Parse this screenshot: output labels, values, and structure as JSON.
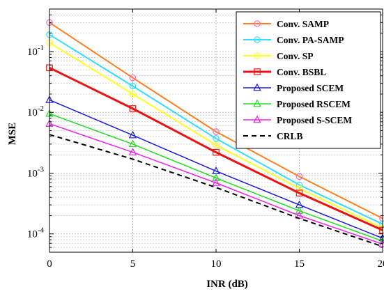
{
  "chart_data": {
    "type": "line",
    "xlabel": "INR (dB)",
    "ylabel": "MSE",
    "x": [
      0,
      5,
      10,
      15,
      20
    ],
    "xlim": [
      0,
      20
    ],
    "ylim": [
      5e-05,
      0.5
    ],
    "yscale": "log",
    "xticks": [
      "0",
      "5",
      "10",
      "15",
      "20"
    ],
    "yticks": [
      {
        "value": 0.0001,
        "base": "10",
        "exp": "-4"
      },
      {
        "value": 0.001,
        "base": "10",
        "exp": "-3"
      },
      {
        "value": 0.01,
        "base": "10",
        "exp": "-2"
      },
      {
        "value": 0.1,
        "base": "10",
        "exp": "-1"
      }
    ],
    "grid": true,
    "legend_position": "top-right",
    "series": [
      {
        "name": "Conv. SAMP",
        "color": "#ff7f1e",
        "marker": "circle",
        "marker_color": "#ff66cc",
        "dash": "solid",
        "width": 2,
        "values": [
          0.3,
          0.037,
          0.0048,
          0.00088,
          0.00018
        ]
      },
      {
        "name": "Conv. PA-SAMP",
        "color": "#33ddff",
        "marker": "circle",
        "marker_color": "#33ddff",
        "dash": "solid",
        "width": 2,
        "values": [
          0.19,
          0.027,
          0.0037,
          0.00064,
          0.000145
        ]
      },
      {
        "name": "Conv.  SP",
        "color": "#ffff22",
        "marker": "circle",
        "marker_color": "#ffff22",
        "dash": "solid",
        "width": 2,
        "values": [
          0.14,
          0.02,
          0.0029,
          0.00056,
          0.000125
        ]
      },
      {
        "name": "Conv. BSBL",
        "color": "#ee1111",
        "marker": "square",
        "marker_color": "#ee1111",
        "dash": "solid",
        "width": 3,
        "values": [
          0.054,
          0.0115,
          0.0022,
          0.00047,
          0.000115
        ]
      },
      {
        "name": "Proposed SCEM",
        "color": "#1a1adc",
        "marker": "triangle",
        "marker_color": "#1a1adc",
        "dash": "solid",
        "width": 1.5,
        "values": [
          0.016,
          0.0042,
          0.00108,
          0.0003,
          8.5e-05
        ]
      },
      {
        "name": "Proposed RSCEM",
        "color": "#22dd22",
        "marker": "triangle",
        "marker_color": "#22dd22",
        "dash": "solid",
        "width": 1.5,
        "values": [
          0.0095,
          0.003,
          0.00083,
          0.00024,
          7.6e-05
        ]
      },
      {
        "name": "Proposed S-SCEM",
        "color": "#ee22ee",
        "marker": "triangle",
        "marker_color": "#ee22ee",
        "dash": "solid",
        "width": 1.5,
        "values": [
          0.0065,
          0.0022,
          0.00069,
          0.0002,
          6.8e-05
        ]
      },
      {
        "name": "CRLB",
        "color": "#000000",
        "marker": "none",
        "marker_color": "#000000",
        "dash": "dashed",
        "width": 2,
        "values": [
          0.0043,
          0.0017,
          0.00058,
          0.00018,
          6.2e-05
        ]
      }
    ]
  }
}
